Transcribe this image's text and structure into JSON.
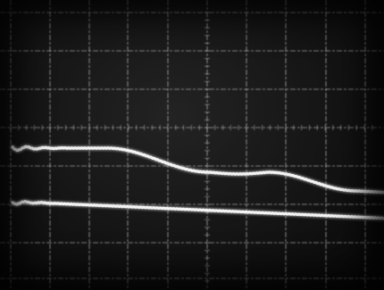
{
  "photo": {
    "subject": "oscilloscope-screen",
    "background_color": "#121212",
    "graticule_color": "#bdbdbd",
    "trace_color": "#f4f4f4",
    "grid": true
  },
  "traces": [
    {
      "name": "upper-trace"
    },
    {
      "name": "lower-trace"
    }
  ]
}
